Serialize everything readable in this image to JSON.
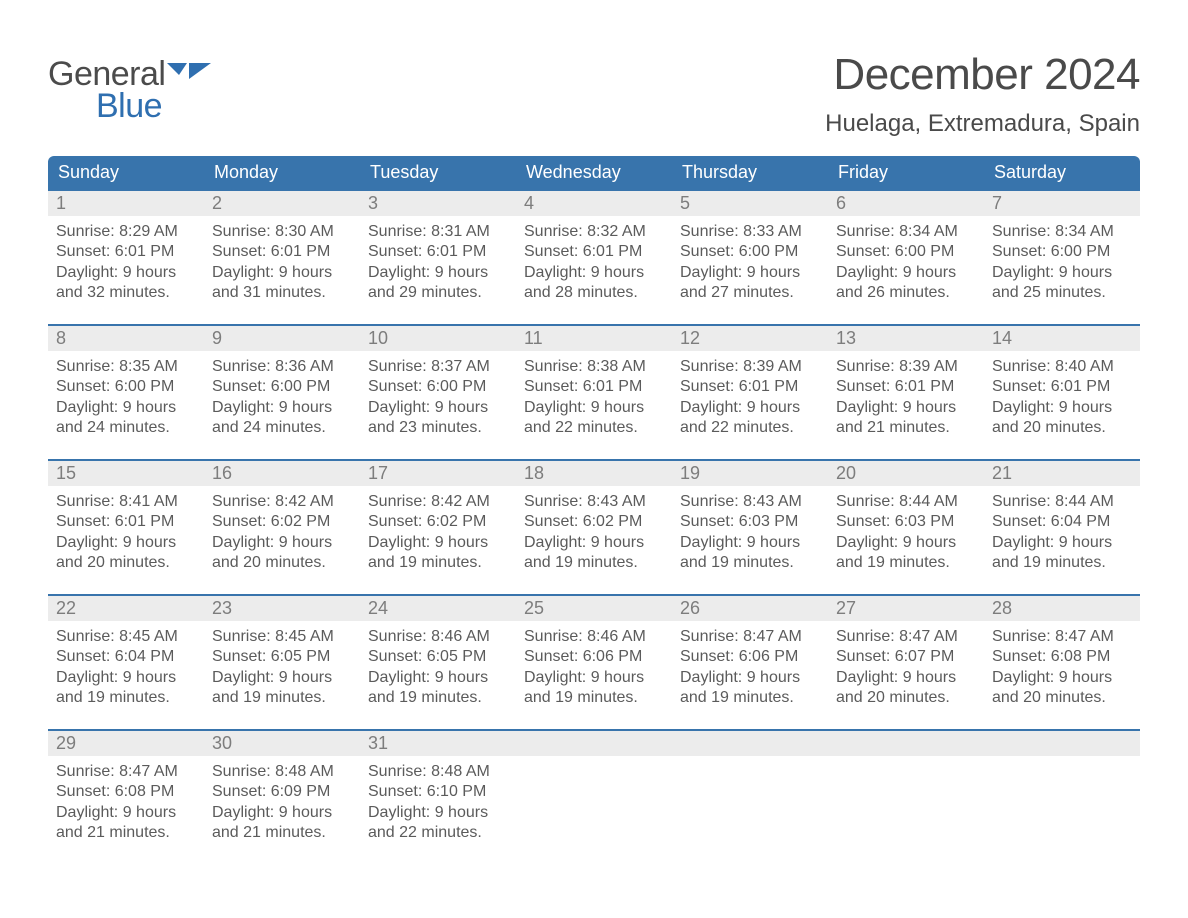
{
  "logo": {
    "word1": "General",
    "word2": "Blue"
  },
  "title": "December 2024",
  "location": "Huelaga, Extremadura, Spain",
  "colors": {
    "header_bg": "#3874ac",
    "header_text": "#ffffff",
    "daynum_bg": "#ececec",
    "daynum_text": "#7d7d7d",
    "body_text": "#5b5b5b",
    "rule": "#3874ac",
    "logo_gray": "#4b4b4b",
    "logo_blue": "#2f6fb0",
    "page_bg": "#ffffff"
  },
  "typography": {
    "title_fontsize": 44,
    "location_fontsize": 24,
    "header_fontsize": 18,
    "daynum_fontsize": 18,
    "body_fontsize": 16,
    "logo_fontsize": 34
  },
  "day_headers": [
    "Sunday",
    "Monday",
    "Tuesday",
    "Wednesday",
    "Thursday",
    "Friday",
    "Saturday"
  ],
  "weeks": [
    {
      "nums": [
        "1",
        "2",
        "3",
        "4",
        "5",
        "6",
        "7"
      ],
      "cells": [
        {
          "sunrise": "Sunrise: 8:29 AM",
          "sunset": "Sunset: 6:01 PM",
          "dl1": "Daylight: 9 hours",
          "dl2": "and 32 minutes."
        },
        {
          "sunrise": "Sunrise: 8:30 AM",
          "sunset": "Sunset: 6:01 PM",
          "dl1": "Daylight: 9 hours",
          "dl2": "and 31 minutes."
        },
        {
          "sunrise": "Sunrise: 8:31 AM",
          "sunset": "Sunset: 6:01 PM",
          "dl1": "Daylight: 9 hours",
          "dl2": "and 29 minutes."
        },
        {
          "sunrise": "Sunrise: 8:32 AM",
          "sunset": "Sunset: 6:01 PM",
          "dl1": "Daylight: 9 hours",
          "dl2": "and 28 minutes."
        },
        {
          "sunrise": "Sunrise: 8:33 AM",
          "sunset": "Sunset: 6:00 PM",
          "dl1": "Daylight: 9 hours",
          "dl2": "and 27 minutes."
        },
        {
          "sunrise": "Sunrise: 8:34 AM",
          "sunset": "Sunset: 6:00 PM",
          "dl1": "Daylight: 9 hours",
          "dl2": "and 26 minutes."
        },
        {
          "sunrise": "Sunrise: 8:34 AM",
          "sunset": "Sunset: 6:00 PM",
          "dl1": "Daylight: 9 hours",
          "dl2": "and 25 minutes."
        }
      ]
    },
    {
      "nums": [
        "8",
        "9",
        "10",
        "11",
        "12",
        "13",
        "14"
      ],
      "cells": [
        {
          "sunrise": "Sunrise: 8:35 AM",
          "sunset": "Sunset: 6:00 PM",
          "dl1": "Daylight: 9 hours",
          "dl2": "and 24 minutes."
        },
        {
          "sunrise": "Sunrise: 8:36 AM",
          "sunset": "Sunset: 6:00 PM",
          "dl1": "Daylight: 9 hours",
          "dl2": "and 24 minutes."
        },
        {
          "sunrise": "Sunrise: 8:37 AM",
          "sunset": "Sunset: 6:00 PM",
          "dl1": "Daylight: 9 hours",
          "dl2": "and 23 minutes."
        },
        {
          "sunrise": "Sunrise: 8:38 AM",
          "sunset": "Sunset: 6:01 PM",
          "dl1": "Daylight: 9 hours",
          "dl2": "and 22 minutes."
        },
        {
          "sunrise": "Sunrise: 8:39 AM",
          "sunset": "Sunset: 6:01 PM",
          "dl1": "Daylight: 9 hours",
          "dl2": "and 22 minutes."
        },
        {
          "sunrise": "Sunrise: 8:39 AM",
          "sunset": "Sunset: 6:01 PM",
          "dl1": "Daylight: 9 hours",
          "dl2": "and 21 minutes."
        },
        {
          "sunrise": "Sunrise: 8:40 AM",
          "sunset": "Sunset: 6:01 PM",
          "dl1": "Daylight: 9 hours",
          "dl2": "and 20 minutes."
        }
      ]
    },
    {
      "nums": [
        "15",
        "16",
        "17",
        "18",
        "19",
        "20",
        "21"
      ],
      "cells": [
        {
          "sunrise": "Sunrise: 8:41 AM",
          "sunset": "Sunset: 6:01 PM",
          "dl1": "Daylight: 9 hours",
          "dl2": "and 20 minutes."
        },
        {
          "sunrise": "Sunrise: 8:42 AM",
          "sunset": "Sunset: 6:02 PM",
          "dl1": "Daylight: 9 hours",
          "dl2": "and 20 minutes."
        },
        {
          "sunrise": "Sunrise: 8:42 AM",
          "sunset": "Sunset: 6:02 PM",
          "dl1": "Daylight: 9 hours",
          "dl2": "and 19 minutes."
        },
        {
          "sunrise": "Sunrise: 8:43 AM",
          "sunset": "Sunset: 6:02 PM",
          "dl1": "Daylight: 9 hours",
          "dl2": "and 19 minutes."
        },
        {
          "sunrise": "Sunrise: 8:43 AM",
          "sunset": "Sunset: 6:03 PM",
          "dl1": "Daylight: 9 hours",
          "dl2": "and 19 minutes."
        },
        {
          "sunrise": "Sunrise: 8:44 AM",
          "sunset": "Sunset: 6:03 PM",
          "dl1": "Daylight: 9 hours",
          "dl2": "and 19 minutes."
        },
        {
          "sunrise": "Sunrise: 8:44 AM",
          "sunset": "Sunset: 6:04 PM",
          "dl1": "Daylight: 9 hours",
          "dl2": "and 19 minutes."
        }
      ]
    },
    {
      "nums": [
        "22",
        "23",
        "24",
        "25",
        "26",
        "27",
        "28"
      ],
      "cells": [
        {
          "sunrise": "Sunrise: 8:45 AM",
          "sunset": "Sunset: 6:04 PM",
          "dl1": "Daylight: 9 hours",
          "dl2": "and 19 minutes."
        },
        {
          "sunrise": "Sunrise: 8:45 AM",
          "sunset": "Sunset: 6:05 PM",
          "dl1": "Daylight: 9 hours",
          "dl2": "and 19 minutes."
        },
        {
          "sunrise": "Sunrise: 8:46 AM",
          "sunset": "Sunset: 6:05 PM",
          "dl1": "Daylight: 9 hours",
          "dl2": "and 19 minutes."
        },
        {
          "sunrise": "Sunrise: 8:46 AM",
          "sunset": "Sunset: 6:06 PM",
          "dl1": "Daylight: 9 hours",
          "dl2": "and 19 minutes."
        },
        {
          "sunrise": "Sunrise: 8:47 AM",
          "sunset": "Sunset: 6:06 PM",
          "dl1": "Daylight: 9 hours",
          "dl2": "and 19 minutes."
        },
        {
          "sunrise": "Sunrise: 8:47 AM",
          "sunset": "Sunset: 6:07 PM",
          "dl1": "Daylight: 9 hours",
          "dl2": "and 20 minutes."
        },
        {
          "sunrise": "Sunrise: 8:47 AM",
          "sunset": "Sunset: 6:08 PM",
          "dl1": "Daylight: 9 hours",
          "dl2": "and 20 minutes."
        }
      ]
    },
    {
      "nums": [
        "29",
        "30",
        "31",
        "",
        "",
        "",
        ""
      ],
      "cells": [
        {
          "sunrise": "Sunrise: 8:47 AM",
          "sunset": "Sunset: 6:08 PM",
          "dl1": "Daylight: 9 hours",
          "dl2": "and 21 minutes."
        },
        {
          "sunrise": "Sunrise: 8:48 AM",
          "sunset": "Sunset: 6:09 PM",
          "dl1": "Daylight: 9 hours",
          "dl2": "and 21 minutes."
        },
        {
          "sunrise": "Sunrise: 8:48 AM",
          "sunset": "Sunset: 6:10 PM",
          "dl1": "Daylight: 9 hours",
          "dl2": "and 22 minutes."
        },
        {
          "sunrise": "",
          "sunset": "",
          "dl1": "",
          "dl2": ""
        },
        {
          "sunrise": "",
          "sunset": "",
          "dl1": "",
          "dl2": ""
        },
        {
          "sunrise": "",
          "sunset": "",
          "dl1": "",
          "dl2": ""
        },
        {
          "sunrise": "",
          "sunset": "",
          "dl1": "",
          "dl2": ""
        }
      ]
    }
  ]
}
